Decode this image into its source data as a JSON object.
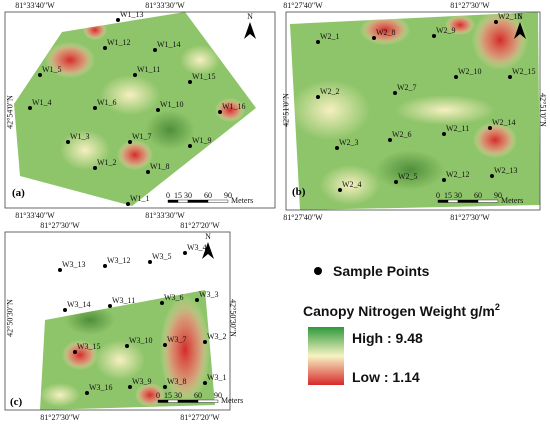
{
  "panels": [
    {
      "label": "(a)",
      "top_ticks": [
        "81°33'40\"W",
        "81°33'30\"W"
      ],
      "bottom_ticks": [
        "81°33'40\"W",
        "81°33'30\"W"
      ],
      "left_label": "42°54'0\"N",
      "north": "N",
      "scale_ticks": [
        "0",
        "15",
        "30",
        "60",
        "90"
      ],
      "scale_unit": "Meters",
      "points": [
        "W1_13",
        "W1_12",
        "W1_14",
        "W1_5",
        "W1_11",
        "W1_15",
        "W1_4",
        "W1_6",
        "W1_10",
        "W1_16",
        "W1_3",
        "W1_7",
        "W1_9",
        "W1_2",
        "W1_8",
        "W1_1"
      ]
    },
    {
      "label": "(b)",
      "top_ticks": [
        "81°27'40\"W",
        "81°27'30\"W"
      ],
      "bottom_ticks": [
        "81°27'40\"W",
        "81°27'30\"W"
      ],
      "left_label": "42°51'0\"N",
      "right_label": "42°51'0\"N",
      "north": "N",
      "scale_ticks": [
        "0",
        "15",
        "30",
        "60",
        "90"
      ],
      "scale_unit": "Meters",
      "points": [
        "W2_16",
        "W2_1",
        "W2_8",
        "W2_9",
        "W2_2",
        "W2_7",
        "W2_10",
        "W2_15",
        "W2_6",
        "W2_11",
        "W2_14",
        "W2_3",
        "W2_4",
        "W2_5",
        "W2_12",
        "W2_13"
      ]
    },
    {
      "label": "(c)",
      "top_ticks": [
        "81°27'30\"W",
        "81°27'20\"W"
      ],
      "bottom_ticks": [
        "81°27'30\"W",
        "81°27'20\"W"
      ],
      "left_label": "42°50'30\"N",
      "right_label": "42°50'30\"N",
      "north": "N",
      "scale_ticks": [
        "0",
        "15",
        "30",
        "60",
        "90"
      ],
      "scale_unit": "Meters",
      "points": [
        "W3_4",
        "W3_5",
        "W3_12",
        "W3_13",
        "W3_14",
        "W3_11",
        "W3_6",
        "W3_3",
        "W3_2",
        "W3_7",
        "W3_10",
        "W3_15",
        "W3_9",
        "W3_8",
        "W3_1",
        "W3_16"
      ]
    }
  ],
  "legend": {
    "points_label": "Sample Points",
    "title": "Canopy Nitrogen Weight g/m",
    "title_superscript": "2",
    "high": "High : 9.48",
    "low": "Low : 1.14"
  }
}
